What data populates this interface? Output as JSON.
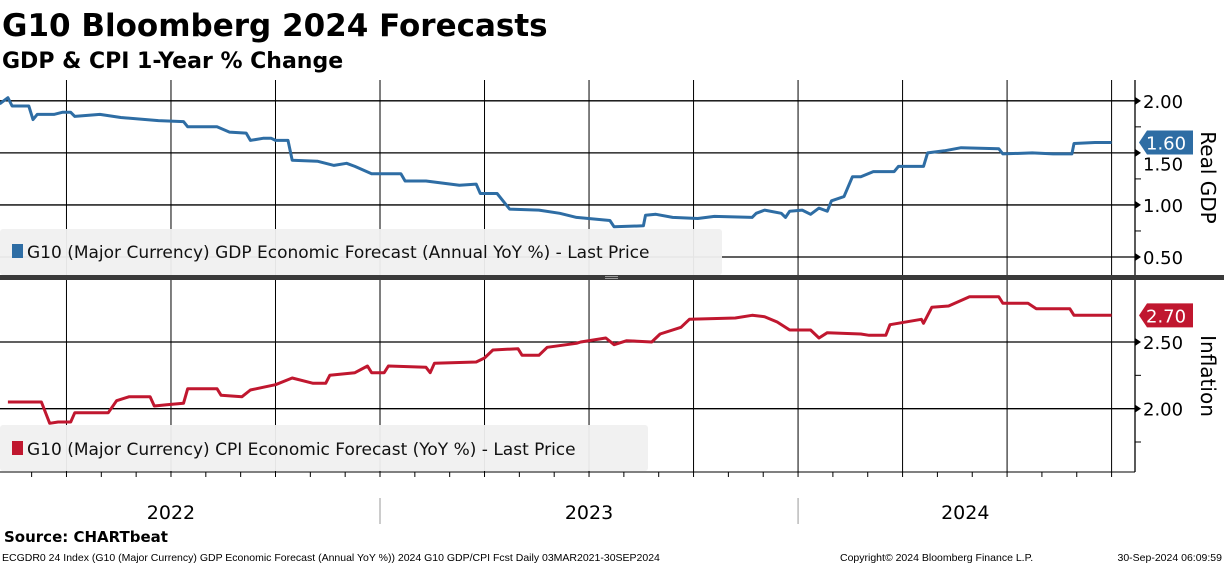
{
  "header": {
    "title": "G10 Bloomberg 2024 Forecasts",
    "subtitle": "GDP & CPI 1-Year % Change"
  },
  "chart_data": [
    {
      "type": "line",
      "title": "Real GDP",
      "ylabel": "Real GDP",
      "ylim": [
        0.327,
        2.2
      ],
      "xlim": [
        2022.091,
        2024.806
      ],
      "yticks": [
        "2.00",
        "1.50",
        "1.00",
        "0.50"
      ],
      "ytick_values": [
        2.0,
        1.5,
        1.0,
        0.5
      ],
      "minor_ytick_values": [
        1.75,
        1.25,
        0.75
      ],
      "grid": true,
      "legend": "bottom-left",
      "last_value_label": "1.60",
      "color": "#2e6da4",
      "series": [
        {
          "name": "G10 (Major Currency) GDP Economic Forecast (Annual YoY %) - Last Price",
          "x": [
            2022.09,
            2022.11,
            2022.12,
            2022.16,
            2022.17,
            2022.18,
            2022.22,
            2022.24,
            2022.26,
            2022.27,
            2022.33,
            2022.38,
            2022.47,
            2022.53,
            2022.54,
            2022.61,
            2022.64,
            2022.68,
            2022.69,
            2022.72,
            2022.74,
            2022.75,
            2022.78,
            2022.79,
            2022.85,
            2022.89,
            2022.92,
            2022.94,
            2022.98,
            2023.05,
            2023.06,
            2023.11,
            2023.19,
            2023.23,
            2023.24,
            2023.28,
            2023.31,
            2023.38,
            2023.43,
            2023.47,
            2023.55,
            2023.56,
            2023.63,
            2023.635,
            2023.66,
            2023.7,
            2023.76,
            2023.8,
            2023.89,
            2023.9,
            2023.92,
            2023.96,
            2023.97,
            2023.98,
            2024.01,
            2024.03,
            2024.05,
            2024.07,
            2024.08,
            2024.11,
            2024.13,
            2024.15,
            2024.18,
            2024.23,
            2024.24,
            2024.3,
            2024.31,
            2024.35,
            2024.39,
            2024.48,
            2024.49,
            2024.56,
            2024.61,
            2024.655,
            2024.66,
            2024.71,
            2024.75
          ],
          "values": [
            1.97,
            2.03,
            1.95,
            1.95,
            1.82,
            1.87,
            1.87,
            1.89,
            1.89,
            1.85,
            1.87,
            1.84,
            1.81,
            1.8,
            1.75,
            1.75,
            1.7,
            1.69,
            1.62,
            1.64,
            1.64,
            1.62,
            1.62,
            1.43,
            1.42,
            1.38,
            1.4,
            1.37,
            1.3,
            1.3,
            1.23,
            1.23,
            1.19,
            1.2,
            1.11,
            1.11,
            0.96,
            0.95,
            0.92,
            0.88,
            0.85,
            0.79,
            0.8,
            0.9,
            0.91,
            0.88,
            0.87,
            0.89,
            0.88,
            0.92,
            0.95,
            0.92,
            0.88,
            0.94,
            0.95,
            0.91,
            0.97,
            0.94,
            1.04,
            1.08,
            1.27,
            1.27,
            1.32,
            1.32,
            1.37,
            1.37,
            1.5,
            1.52,
            1.55,
            1.54,
            1.49,
            1.5,
            1.49,
            1.49,
            1.59,
            1.6,
            1.6
          ]
        }
      ]
    },
    {
      "type": "line",
      "title": "Inflation",
      "ylabel": "Inflation",
      "ylim": [
        1.525,
        2.965
      ],
      "xlim": [
        2022.091,
        2024.806
      ],
      "yticks": [
        "2.50",
        "2.00"
      ],
      "ytick_values": [
        2.5,
        2.0
      ],
      "minor_ytick_values": [
        2.25,
        1.75
      ],
      "grid": true,
      "legend": "bottom-left",
      "last_value_label": "2.70",
      "color": "#c0172f",
      "series": [
        {
          "name": "G10 (Major Currency) CPI Economic Forecast (YoY %) - Last Price",
          "x": [
            2022.11,
            2022.19,
            2022.21,
            2022.23,
            2022.26,
            2022.27,
            2022.35,
            2022.37,
            2022.4,
            2022.45,
            2022.46,
            2022.49,
            2022.53,
            2022.54,
            2022.61,
            2022.62,
            2022.67,
            2022.69,
            2022.72,
            2022.75,
            2022.79,
            2022.84,
            2022.87,
            2022.88,
            2022.94,
            2022.97,
            2022.98,
            2023.01,
            2023.02,
            2023.11,
            2023.12,
            2023.13,
            2023.23,
            2023.25,
            2023.27,
            2023.33,
            2023.34,
            2023.38,
            2023.4,
            2023.47,
            2023.48,
            2023.54,
            2023.56,
            2023.59,
            2023.65,
            2023.67,
            2023.72,
            2023.74,
            2023.85,
            2023.89,
            2023.92,
            2023.95,
            2023.98,
            2024.03,
            2024.05,
            2024.07,
            2024.15,
            2024.17,
            2024.21,
            2024.22,
            2024.295,
            2024.3,
            2024.32,
            2024.36,
            2024.41,
            2024.48,
            2024.49,
            2024.55,
            2024.57,
            2024.65,
            2024.66,
            2024.75
          ],
          "values": [
            2.05,
            2.05,
            1.89,
            1.9,
            1.9,
            1.97,
            1.97,
            2.06,
            2.09,
            2.09,
            2.02,
            2.03,
            2.04,
            2.15,
            2.15,
            2.1,
            2.09,
            2.14,
            2.16,
            2.18,
            2.23,
            2.19,
            2.19,
            2.25,
            2.27,
            2.32,
            2.27,
            2.27,
            2.32,
            2.31,
            2.27,
            2.34,
            2.35,
            2.38,
            2.44,
            2.45,
            2.4,
            2.4,
            2.46,
            2.49,
            2.5,
            2.53,
            2.48,
            2.51,
            2.5,
            2.56,
            2.61,
            2.67,
            2.68,
            2.7,
            2.69,
            2.65,
            2.59,
            2.59,
            2.53,
            2.57,
            2.56,
            2.55,
            2.55,
            2.63,
            2.67,
            2.64,
            2.76,
            2.77,
            2.84,
            2.84,
            2.79,
            2.79,
            2.75,
            2.75,
            2.7,
            2.7
          ]
        }
      ]
    }
  ],
  "x_axis": {
    "quarter_gridlines": [
      2022.25,
      2022.5,
      2022.75,
      2023.0,
      2023.25,
      2023.5,
      2023.75,
      2024.0,
      2024.25,
      2024.5,
      2024.75
    ],
    "year_labels": [
      "2022",
      "2023",
      "2024"
    ],
    "year_label_centers": [
      2022.5,
      2023.5,
      2024.4
    ],
    "year_separators": [
      2023.0,
      2024.0
    ]
  },
  "source": "Source: CHARTbeat",
  "footer": {
    "description": "ECGDR0 24 Index (G10 (Major Currency) GDP Economic Forecast (Annual YoY %)) 2024 G10 GDP/CPI Fcst  Daily 03MAR2021-30SEP2024",
    "copyright": "Copyright© 2024 Bloomberg Finance L.P.",
    "timestamp": "30-Sep-2024 06:09:59"
  }
}
